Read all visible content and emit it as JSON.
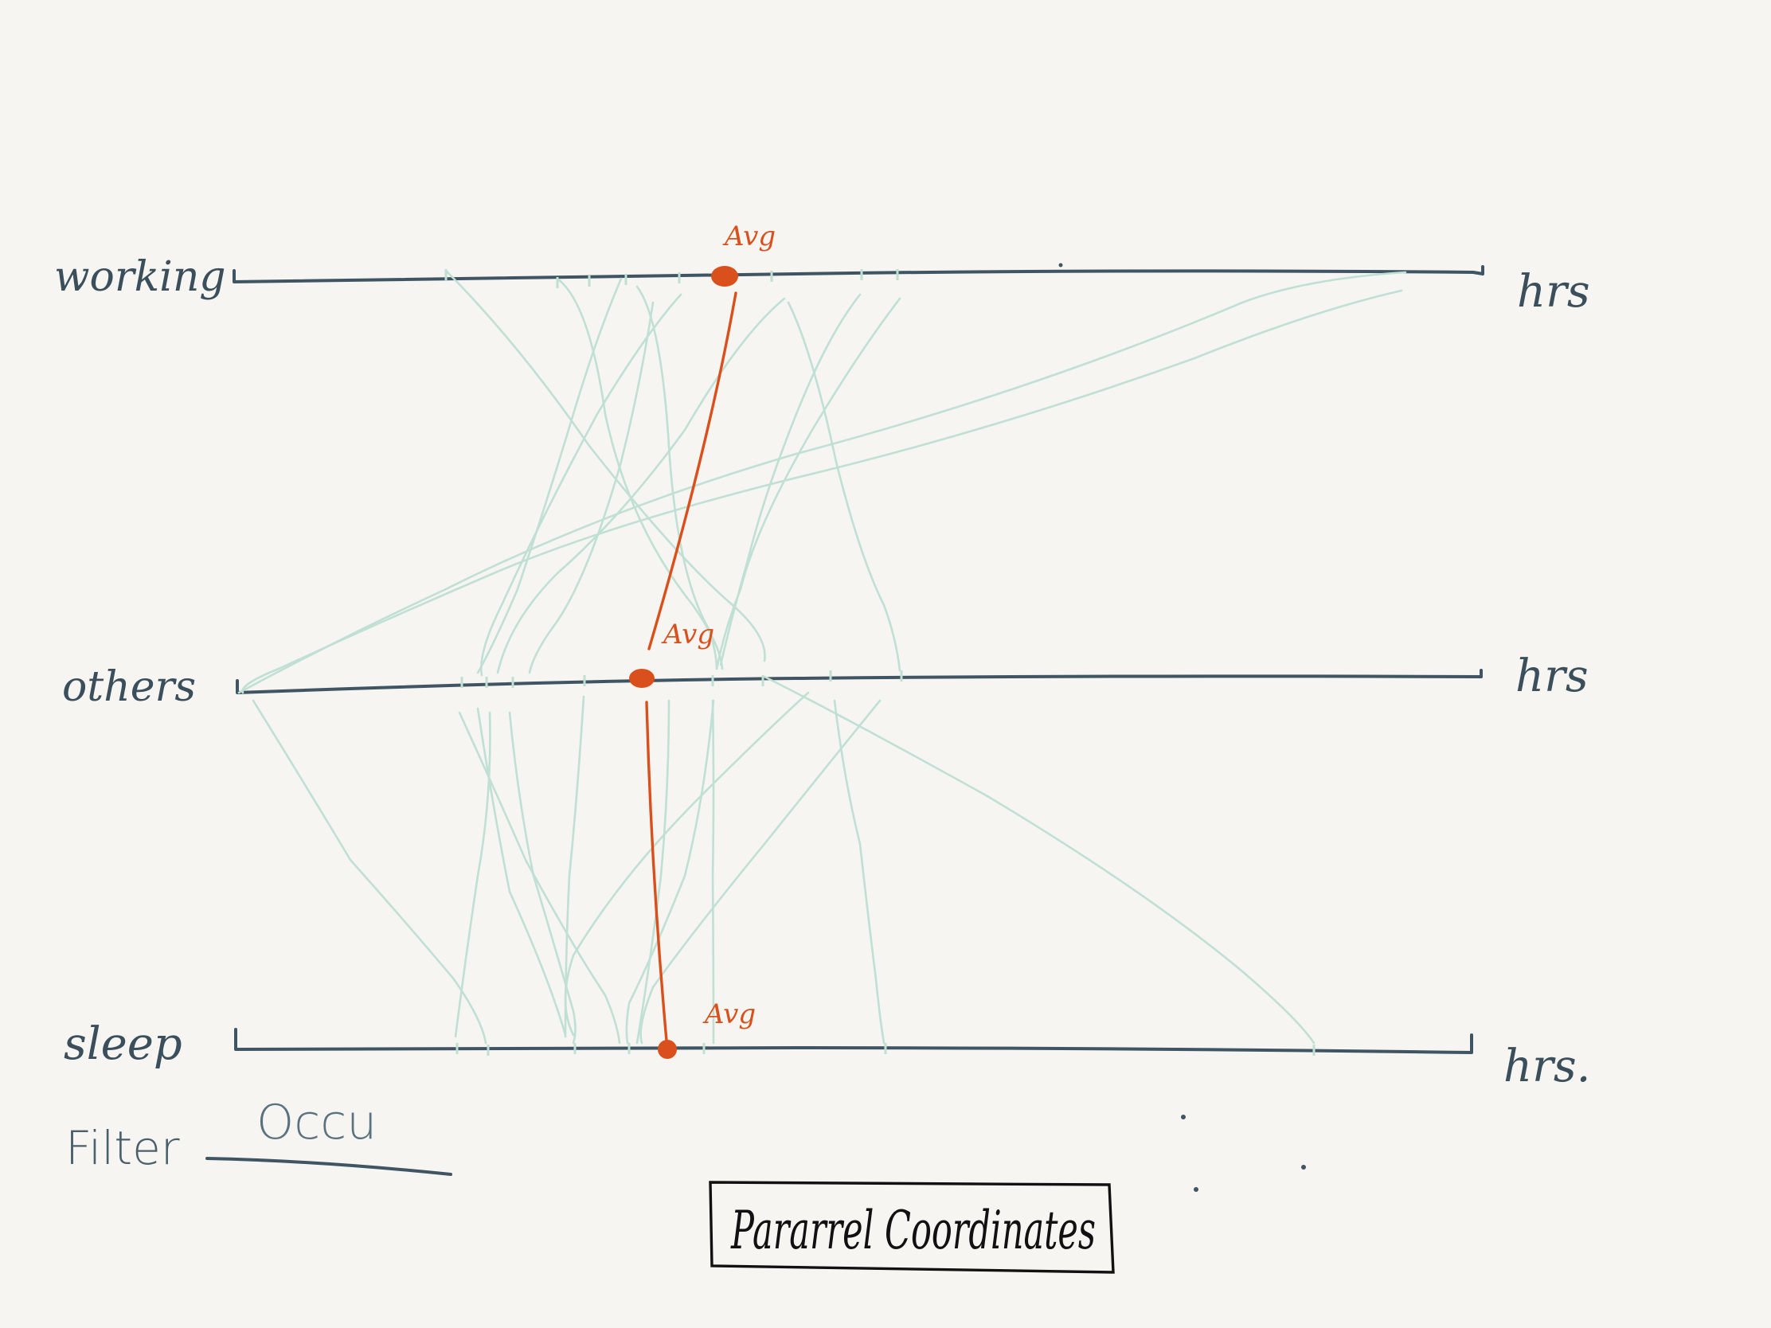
{
  "title": "Pararrel Coordinates",
  "axes": [
    {
      "label": "working",
      "unit": "hrs"
    },
    {
      "label": "others",
      "unit": "hrs"
    },
    {
      "label": "sleep",
      "unit": "hrs."
    }
  ],
  "average_label": "Avg",
  "filter": {
    "label": "Filter",
    "value": "Occu"
  },
  "colors": {
    "axis": "#3f5563",
    "links": "#bfe0d2",
    "average": "#d9501c",
    "background": "#f6f5f1"
  }
}
